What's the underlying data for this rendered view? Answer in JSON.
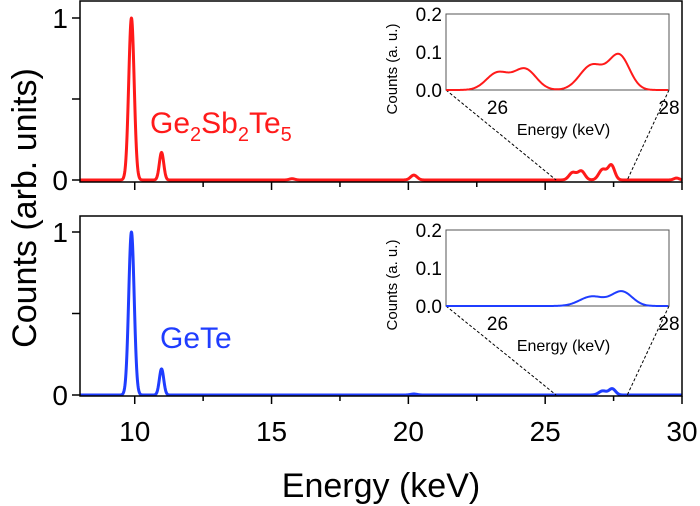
{
  "chart_data": [
    {
      "type": "line",
      "panel": "top",
      "label_main": "Ge",
      "label_parts": [
        [
          "Ge",
          ""
        ],
        [
          "2",
          "sub"
        ],
        [
          "Sb",
          ""
        ],
        [
          "2",
          "sub"
        ],
        [
          "Te",
          ""
        ],
        [
          "5",
          "sub"
        ]
      ],
      "series_label": "Ge2Sb2Te5",
      "color": "#ff1a1a",
      "xlim": [
        8,
        30
      ],
      "ylim": [
        0,
        1.1
      ],
      "yticks": [
        0,
        0.5,
        1
      ],
      "ytick_labels": [
        "0",
        "",
        "1"
      ],
      "peaks": [
        {
          "center": 9.88,
          "height": 1.0,
          "sigma": 0.1
        },
        {
          "center": 10.98,
          "height": 0.17,
          "sigma": 0.08
        },
        {
          "center": 15.75,
          "height": 0.008,
          "sigma": 0.1
        },
        {
          "center": 20.2,
          "height": 0.03,
          "sigma": 0.12
        },
        {
          "center": 26.0,
          "height": 0.045,
          "sigma": 0.13
        },
        {
          "center": 26.32,
          "height": 0.055,
          "sigma": 0.13
        },
        {
          "center": 27.1,
          "height": 0.065,
          "sigma": 0.14
        },
        {
          "center": 27.42,
          "height": 0.09,
          "sigma": 0.12
        },
        {
          "center": 29.8,
          "height": 0.012,
          "sigma": 0.1
        }
      ],
      "inset": {
        "xlim": [
          25.4,
          28
        ],
        "ylim": [
          0,
          0.2
        ],
        "xticks": [
          26,
          28
        ],
        "xtick_labels": [
          "26",
          "28"
        ],
        "yticks": [
          0,
          0.1,
          0.2
        ],
        "ytick_labels": [
          "0.0",
          "0.1",
          "0.2"
        ],
        "xlabel": "Energy (keV)",
        "ylabel": "Counts (a. u.)"
      }
    },
    {
      "type": "line",
      "panel": "bottom",
      "series_label": "GeTe",
      "color": "#1f3dff",
      "xlim": [
        8,
        30
      ],
      "ylim": [
        0,
        1.1
      ],
      "yticks": [
        0,
        0.5,
        1
      ],
      "ytick_labels": [
        "0",
        "",
        "1"
      ],
      "peaks": [
        {
          "center": 9.88,
          "height": 1.0,
          "sigma": 0.1
        },
        {
          "center": 10.98,
          "height": 0.16,
          "sigma": 0.08
        },
        {
          "center": 20.2,
          "height": 0.006,
          "sigma": 0.12
        },
        {
          "center": 27.1,
          "height": 0.025,
          "sigma": 0.14
        },
        {
          "center": 27.45,
          "height": 0.038,
          "sigma": 0.12
        }
      ],
      "inset": {
        "xlim": [
          25.4,
          28
        ],
        "ylim": [
          0,
          0.2
        ],
        "xticks": [
          26,
          28
        ],
        "xtick_labels": [
          "26",
          "28"
        ],
        "yticks": [
          0,
          0.1,
          0.2
        ],
        "ytick_labels": [
          "0.0",
          "0.1",
          "0.2"
        ],
        "xlabel": "Energy (keV)",
        "ylabel": "Counts (a. u.)"
      }
    }
  ],
  "axes": {
    "xlabel": "Energy (keV)",
    "ylabel": "Counts (arb. units)",
    "xticks": [
      10,
      15,
      20,
      25,
      30
    ],
    "xtick_labels": [
      "10",
      "15",
      "20",
      "25",
      "30"
    ],
    "minor_xticks": [
      12.5,
      17.5,
      22.5,
      27.5
    ]
  }
}
